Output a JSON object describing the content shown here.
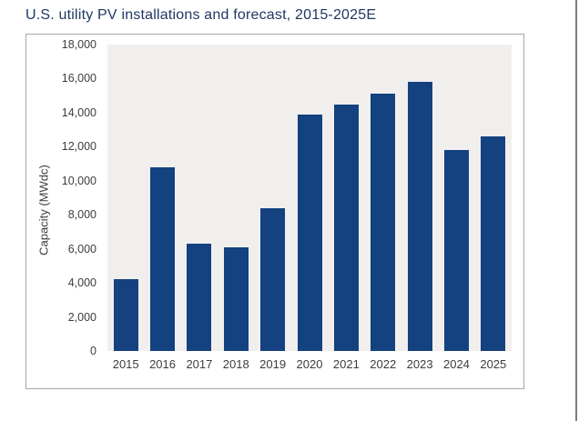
{
  "page": {
    "right_border_color": "#7d7d7d"
  },
  "chart_data": {
    "type": "bar",
    "title": "U.S. utility PV installations and forecast, 2015-2025E",
    "categories": [
      "2015",
      "2016",
      "2017",
      "2018",
      "2019",
      "2020",
      "2021",
      "2022",
      "2023",
      "2024",
      "2025"
    ],
    "values": [
      4200,
      10800,
      6300,
      6100,
      8400,
      13900,
      14500,
      15100,
      15800,
      11800,
      12600
    ],
    "xlabel": "",
    "ylabel": "Capacity (MWdc)",
    "ylim": [
      0,
      18000
    ],
    "ytick_step": 2000,
    "ytick_labels": [
      "0",
      "2,000",
      "4,000",
      "6,000",
      "8,000",
      "10,000",
      "12,000",
      "14,000",
      "16,000",
      "18,000"
    ],
    "grid": false,
    "legend": false,
    "colors": {
      "bar": "#144180",
      "plot_bg": "#f0efee",
      "title": "#1f3864",
      "tick_text": "#3d3d3d",
      "frame_border": "#a6a6a6"
    }
  }
}
